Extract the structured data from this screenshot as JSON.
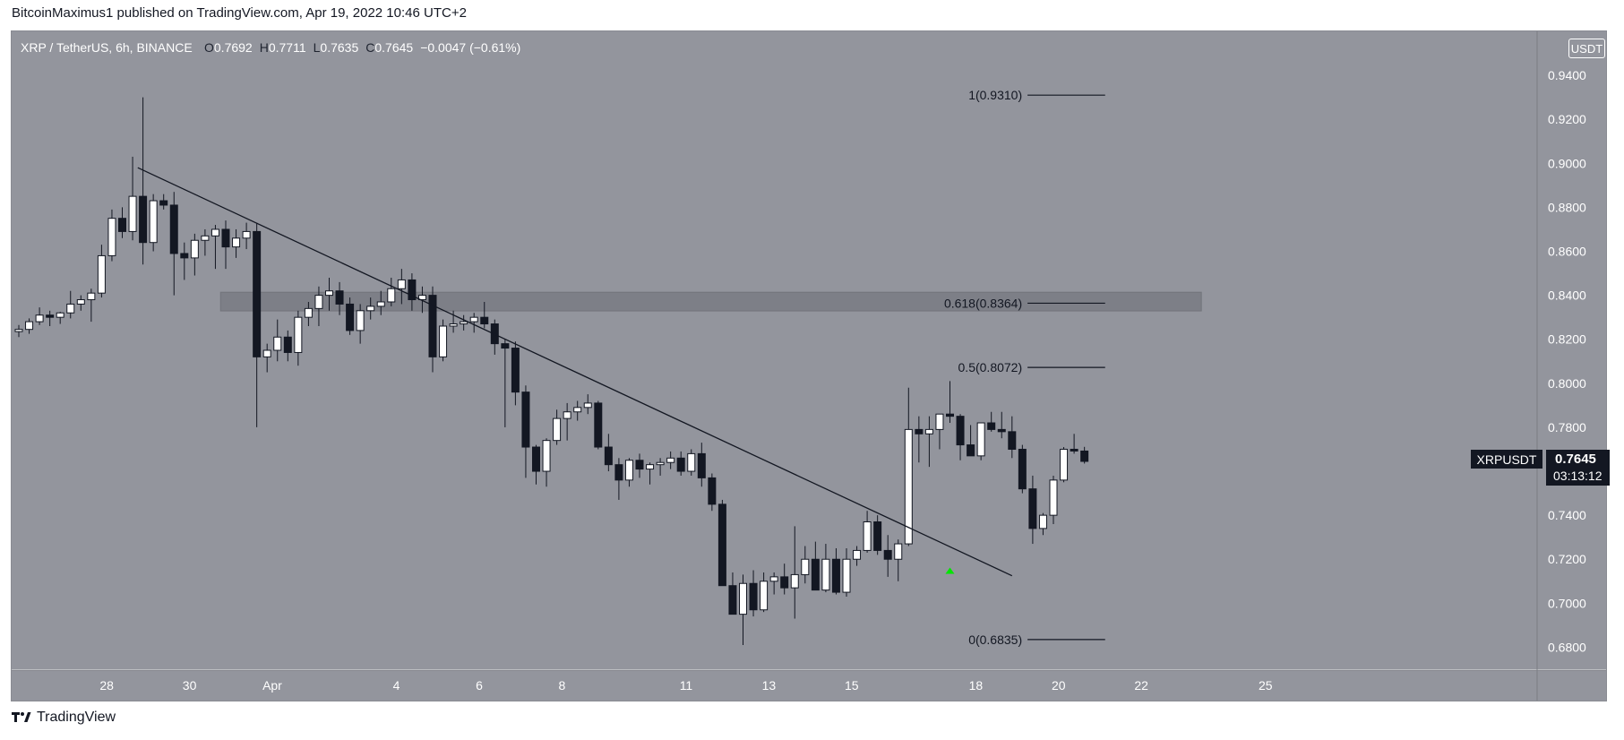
{
  "header": {
    "publisher_line": "BitcoinMaximus1 published on TradingView.com, Apr 19, 2022 10:46 UTC+2"
  },
  "footer": {
    "brand": "TradingView",
    "logo_icon": "tradingview-logo-icon"
  },
  "legend": {
    "symbol": "XRP / TetherUS, 6h, BINANCE",
    "o_label": "O",
    "o_value": "0.7692",
    "h_label": "H",
    "h_value": "0.7711",
    "l_label": "L",
    "l_value": "0.7635",
    "c_label": "C",
    "c_value": "0.7645",
    "change": "−0.0047 (−0.61%)"
  },
  "axis": {
    "currency": "USDT"
  },
  "price_tag": {
    "symbol": "XRPUSDT",
    "price": "0.7645",
    "countdown": "03:13:12"
  },
  "colors": {
    "background": "#93959d",
    "bull": "#ffffff",
    "bear": "#131722",
    "trendline": "#131722",
    "zone": "#7d7f87",
    "arrow": "#00e600",
    "axis_text": "#ffffff"
  },
  "chart_data": {
    "type": "candlestick",
    "symbol": "XRPUSDT",
    "interval": "6h",
    "exchange": "BINANCE",
    "ylim": [
      0.67,
      0.96
    ],
    "y_ticks": [
      "0.6800",
      "0.7000",
      "0.7200",
      "0.7400",
      "0.7600",
      "0.7800",
      "0.8000",
      "0.8200",
      "0.8400",
      "0.8600",
      "0.8800",
      "0.9000",
      "0.9200",
      "0.9400"
    ],
    "x_ticks": [
      {
        "label": "28",
        "bar": 8.5
      },
      {
        "label": "30",
        "bar": 16.5
      },
      {
        "label": "Apr",
        "bar": 24.5
      },
      {
        "label": "4",
        "bar": 36.5
      },
      {
        "label": "6",
        "bar": 44.5
      },
      {
        "label": "8",
        "bar": 52.5
      },
      {
        "label": "11",
        "bar": 64.5
      },
      {
        "label": "13",
        "bar": 72.5
      },
      {
        "label": "15",
        "bar": 80.5
      },
      {
        "label": "18",
        "bar": 92.5
      },
      {
        "label": "20",
        "bar": 100.5
      },
      {
        "label": "22",
        "bar": 108.5
      },
      {
        "label": "25",
        "bar": 120.5
      }
    ],
    "candles": [
      [
        0.8235,
        0.8265,
        0.821,
        0.8245
      ],
      [
        0.8245,
        0.8295,
        0.8225,
        0.828
      ],
      [
        0.828,
        0.8345,
        0.8265,
        0.831
      ],
      [
        0.831,
        0.833,
        0.826,
        0.83
      ],
      [
        0.83,
        0.8325,
        0.827,
        0.832
      ],
      [
        0.832,
        0.842,
        0.8295,
        0.836
      ],
      [
        0.836,
        0.84,
        0.833,
        0.838
      ],
      [
        0.838,
        0.843,
        0.828,
        0.841
      ],
      [
        0.841,
        0.863,
        0.839,
        0.858
      ],
      [
        0.858,
        0.879,
        0.8555,
        0.875
      ],
      [
        0.875,
        0.88,
        0.866,
        0.869
      ],
      [
        0.869,
        0.903,
        0.865,
        0.885
      ],
      [
        0.885,
        0.93,
        0.854,
        0.864
      ],
      [
        0.864,
        0.886,
        0.86,
        0.883
      ],
      [
        0.883,
        0.886,
        0.879,
        0.881
      ],
      [
        0.881,
        0.887,
        0.84,
        0.859
      ],
      [
        0.859,
        0.864,
        0.847,
        0.857
      ],
      [
        0.857,
        0.868,
        0.849,
        0.865
      ],
      [
        0.865,
        0.87,
        0.858,
        0.867
      ],
      [
        0.867,
        0.872,
        0.852,
        0.87
      ],
      [
        0.87,
        0.874,
        0.852,
        0.862
      ],
      [
        0.862,
        0.87,
        0.857,
        0.866
      ],
      [
        0.866,
        0.873,
        0.861,
        0.869
      ],
      [
        0.869,
        0.873,
        0.78,
        0.812
      ],
      [
        0.812,
        0.818,
        0.805,
        0.815
      ],
      [
        0.815,
        0.829,
        0.81,
        0.821
      ],
      [
        0.821,
        0.824,
        0.81,
        0.814
      ],
      [
        0.814,
        0.833,
        0.808,
        0.83
      ],
      [
        0.83,
        0.837,
        0.826,
        0.834
      ],
      [
        0.834,
        0.844,
        0.826,
        0.84
      ],
      [
        0.84,
        0.848,
        0.833,
        0.842
      ],
      [
        0.842,
        0.846,
        0.831,
        0.836
      ],
      [
        0.836,
        0.839,
        0.822,
        0.824
      ],
      [
        0.824,
        0.836,
        0.818,
        0.833
      ],
      [
        0.833,
        0.839,
        0.829,
        0.835
      ],
      [
        0.835,
        0.842,
        0.831,
        0.837
      ],
      [
        0.837,
        0.848,
        0.835,
        0.843
      ],
      [
        0.843,
        0.852,
        0.836,
        0.847
      ],
      [
        0.847,
        0.85,
        0.833,
        0.838
      ],
      [
        0.838,
        0.844,
        0.832,
        0.84
      ],
      [
        0.84,
        0.844,
        0.805,
        0.812
      ],
      [
        0.812,
        0.829,
        0.81,
        0.826
      ],
      [
        0.826,
        0.833,
        0.823,
        0.827
      ],
      [
        0.827,
        0.831,
        0.824,
        0.828
      ],
      [
        0.828,
        0.832,
        0.823,
        0.83
      ],
      [
        0.83,
        0.837,
        0.825,
        0.827
      ],
      [
        0.827,
        0.829,
        0.813,
        0.818
      ],
      [
        0.818,
        0.82,
        0.78,
        0.816
      ],
      [
        0.816,
        0.819,
        0.79,
        0.796
      ],
      [
        0.796,
        0.799,
        0.757,
        0.771
      ],
      [
        0.771,
        0.772,
        0.754,
        0.76
      ],
      [
        0.76,
        0.775,
        0.753,
        0.774
      ],
      [
        0.774,
        0.788,
        0.772,
        0.784
      ],
      [
        0.784,
        0.791,
        0.774,
        0.787
      ],
      [
        0.787,
        0.792,
        0.783,
        0.789
      ],
      [
        0.789,
        0.795,
        0.786,
        0.791
      ],
      [
        0.791,
        0.792,
        0.77,
        0.771
      ],
      [
        0.771,
        0.777,
        0.76,
        0.763
      ],
      [
        0.763,
        0.766,
        0.747,
        0.756
      ],
      [
        0.756,
        0.766,
        0.753,
        0.765
      ],
      [
        0.765,
        0.768,
        0.757,
        0.761
      ],
      [
        0.761,
        0.764,
        0.754,
        0.763
      ],
      [
        0.763,
        0.766,
        0.758,
        0.764
      ],
      [
        0.764,
        0.769,
        0.761,
        0.766
      ],
      [
        0.766,
        0.769,
        0.758,
        0.76
      ],
      [
        0.76,
        0.77,
        0.758,
        0.768
      ],
      [
        0.768,
        0.773,
        0.753,
        0.757
      ],
      [
        0.757,
        0.759,
        0.742,
        0.745
      ],
      [
        0.745,
        0.747,
        0.708,
        0.708
      ],
      [
        0.708,
        0.714,
        0.695,
        0.695
      ],
      [
        0.695,
        0.713,
        0.681,
        0.709
      ],
      [
        0.709,
        0.715,
        0.694,
        0.697
      ],
      [
        0.697,
        0.714,
        0.696,
        0.71
      ],
      [
        0.71,
        0.714,
        0.704,
        0.712
      ],
      [
        0.712,
        0.718,
        0.704,
        0.707
      ],
      [
        0.707,
        0.735,
        0.693,
        0.713
      ],
      [
        0.713,
        0.726,
        0.709,
        0.72
      ],
      [
        0.72,
        0.728,
        0.707,
        0.706
      ],
      [
        0.706,
        0.727,
        0.705,
        0.72
      ],
      [
        0.72,
        0.725,
        0.704,
        0.705
      ],
      [
        0.705,
        0.725,
        0.703,
        0.72
      ],
      [
        0.72,
        0.726,
        0.717,
        0.724
      ],
      [
        0.724,
        0.742,
        0.723,
        0.737
      ],
      [
        0.737,
        0.74,
        0.722,
        0.724
      ],
      [
        0.724,
        0.731,
        0.712,
        0.72
      ],
      [
        0.72,
        0.729,
        0.71,
        0.727
      ],
      [
        0.727,
        0.798,
        0.726,
        0.779
      ],
      [
        0.779,
        0.785,
        0.764,
        0.777
      ],
      [
        0.777,
        0.785,
        0.762,
        0.779
      ],
      [
        0.779,
        0.786,
        0.77,
        0.786
      ],
      [
        0.786,
        0.801,
        0.782,
        0.785
      ],
      [
        0.785,
        0.786,
        0.765,
        0.772
      ],
      [
        0.772,
        0.781,
        0.768,
        0.767
      ],
      [
        0.767,
        0.782,
        0.765,
        0.782
      ],
      [
        0.782,
        0.787,
        0.778,
        0.779
      ],
      [
        0.779,
        0.787,
        0.775,
        0.778
      ],
      [
        0.778,
        0.785,
        0.766,
        0.77
      ],
      [
        0.77,
        0.772,
        0.75,
        0.752
      ],
      [
        0.752,
        0.758,
        0.727,
        0.734
      ],
      [
        0.734,
        0.741,
        0.731,
        0.74
      ],
      [
        0.74,
        0.758,
        0.736,
        0.756
      ],
      [
        0.756,
        0.771,
        0.755,
        0.77
      ],
      [
        0.77,
        0.777,
        0.768,
        0.7692
      ],
      [
        0.7692,
        0.7711,
        0.7635,
        0.7645
      ]
    ],
    "trendline": {
      "from": {
        "bar": 11.5,
        "price": 0.898
      },
      "to": {
        "bar": 96.0,
        "price": 0.7125
      }
    },
    "zone": {
      "from_bar": 19.5,
      "to_bar": 114.3,
      "top": 0.8414,
      "bottom": 0.8329
    },
    "fibonacci": [
      {
        "label": "1(0.9310)",
        "price": 0.931
      },
      {
        "label": "0.618(0.8364)",
        "price": 0.8364
      },
      {
        "label": "0.5(0.8072)",
        "price": 0.8072
      },
      {
        "label": "0(0.6835)",
        "price": 0.6835
      }
    ],
    "fib_from_bar": 97.5,
    "fib_to_bar": 105.0,
    "marker": {
      "type": "up-arrow",
      "bar": 90.0,
      "price": 0.715
    },
    "last_price": 0.7645
  }
}
